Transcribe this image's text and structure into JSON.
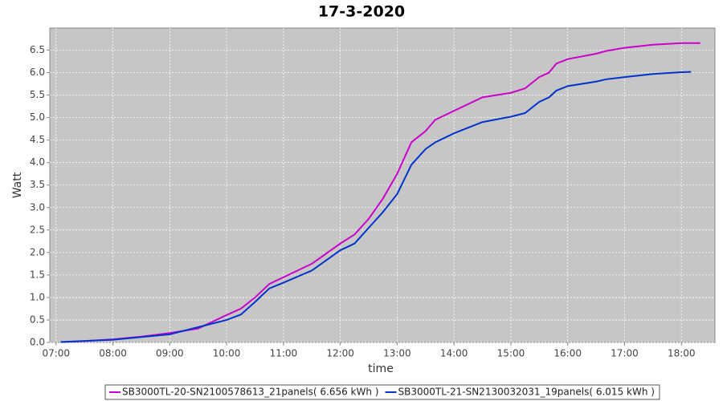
{
  "chart_data": {
    "type": "line",
    "title": "17-3-2020",
    "x_label": "time",
    "y_label": "Watt",
    "xlim": [
      6.89,
      18.59
    ],
    "ylim": [
      0,
      6.99
    ],
    "xticks": [
      {
        "value": 7,
        "label": "07:00"
      },
      {
        "value": 8,
        "label": "08:00"
      },
      {
        "value": 9,
        "label": "09:00"
      },
      {
        "value": 10,
        "label": "10:00"
      },
      {
        "value": 11,
        "label": "11:00"
      },
      {
        "value": 12,
        "label": "12:00"
      },
      {
        "value": 13,
        "label": "13:00"
      },
      {
        "value": 14,
        "label": "14:00"
      },
      {
        "value": 15,
        "label": "15:00"
      },
      {
        "value": 16,
        "label": "16:00"
      },
      {
        "value": 17,
        "label": "17:00"
      },
      {
        "value": 18,
        "label": "18:00"
      }
    ],
    "yticks": [
      {
        "value": 0,
        "label": "0.0"
      },
      0.5,
      {
        "value": 1,
        "label": "1.0"
      },
      1.5,
      {
        "value": 2,
        "label": "2.0"
      },
      2.5,
      {
        "value": 3,
        "label": "3.0"
      },
      3.5,
      {
        "value": 4,
        "label": "4.0"
      },
      4.5,
      {
        "value": 5,
        "label": "5.0"
      },
      5.5,
      {
        "value": 6,
        "label": "6.0"
      },
      6.5
    ],
    "grid": true,
    "legend": "bottom",
    "series": [
      {
        "name": "SB3000TL-20-SN2100578613_21panels( 6.656 kWh )",
        "color": "#cc00cc",
        "x": [
          7.08,
          7.5,
          8,
          8.5,
          9,
          9.5,
          10,
          10.25,
          10.5,
          10.75,
          11,
          11.5,
          12,
          12.25,
          12.5,
          12.75,
          13,
          13.25,
          13.5,
          13.67,
          14,
          14.5,
          15,
          15.25,
          15.5,
          15.67,
          15.8,
          16,
          16.5,
          16.67,
          17,
          17.5,
          18,
          18.33
        ],
        "values": [
          0.01,
          0.03,
          0.07,
          0.13,
          0.21,
          0.31,
          0.61,
          0.75,
          1.0,
          1.3,
          1.45,
          1.75,
          2.2,
          2.4,
          2.75,
          3.2,
          3.75,
          4.45,
          4.7,
          4.95,
          5.15,
          5.45,
          5.55,
          5.65,
          5.9,
          6.0,
          6.2,
          6.3,
          6.42,
          6.48,
          6.55,
          6.62,
          6.655,
          6.656
        ]
      },
      {
        "name": "SB3000TL-21-SN2130032031_19panels( 6.015 kWh )",
        "color": "#0033cc",
        "x": [
          7.08,
          8,
          9,
          10,
          10.25,
          10.5,
          10.75,
          11,
          11.5,
          12,
          12.25,
          12.5,
          12.75,
          13,
          13.25,
          13.5,
          13.67,
          14,
          14.5,
          15,
          15.25,
          15.5,
          15.67,
          15.8,
          16,
          16.5,
          16.67,
          17,
          17.5,
          18,
          18.17
        ],
        "values": [
          0.01,
          0.06,
          0.18,
          0.5,
          0.62,
          0.9,
          1.2,
          1.33,
          1.6,
          2.05,
          2.2,
          2.55,
          2.9,
          3.3,
          3.95,
          4.3,
          4.45,
          4.65,
          4.9,
          5.02,
          5.1,
          5.35,
          5.45,
          5.6,
          5.7,
          5.8,
          5.85,
          5.9,
          5.97,
          6.01,
          6.015
        ]
      }
    ]
  }
}
